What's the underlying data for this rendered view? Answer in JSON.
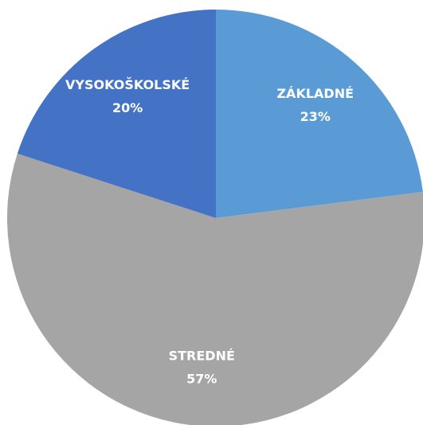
{
  "chart_data": {
    "type": "pie",
    "categories": [
      "ZÁKLADNÉ",
      "STREDNÉ",
      "VYSOKOŠKOLSKÉ"
    ],
    "values": [
      23,
      57,
      20
    ],
    "value_labels": [
      "23%",
      "57%",
      "20%"
    ],
    "colors": [
      "#5b9bd5",
      "#a5a5a5",
      "#4472c4"
    ]
  }
}
